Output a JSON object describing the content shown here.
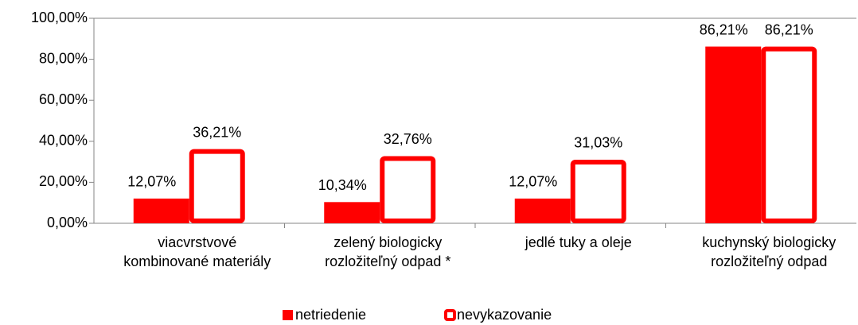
{
  "chart_data": {
    "type": "bar",
    "categories": [
      [
        "viacvrstvové",
        "kombinované materiály"
      ],
      [
        "zelený biologicky",
        "rozložiteľný odpad *"
      ],
      [
        "jedlé tuky a oleje"
      ],
      [
        "kuchynský biologicky",
        "rozložiteľný odpad"
      ]
    ],
    "series": [
      {
        "name": "netriedenie",
        "color": "#ff0000",
        "values": [
          12.07,
          10.34,
          12.07,
          86.21
        ],
        "value_labels": [
          "12,07%",
          "10,34%",
          "12,07%",
          "86,21%"
        ]
      },
      {
        "name": "nevykazovanie",
        "color": "#ff0000",
        "values": [
          36.21,
          32.76,
          31.03,
          86.21
        ],
        "value_labels": [
          "36,21%",
          "32,76%",
          "31,03%",
          "86,21%"
        ]
      }
    ],
    "ylim": [
      0,
      100
    ],
    "yticks": [
      {
        "value": 0,
        "label": "0,00%"
      },
      {
        "value": 20,
        "label": "20,00%"
      },
      {
        "value": 40,
        "label": "40,00%"
      },
      {
        "value": 60,
        "label": "60,00%"
      },
      {
        "value": 80,
        "label": "80,00%"
      },
      {
        "value": 100,
        "label": "100,00%"
      }
    ],
    "grid": false,
    "legend": "bottom"
  }
}
